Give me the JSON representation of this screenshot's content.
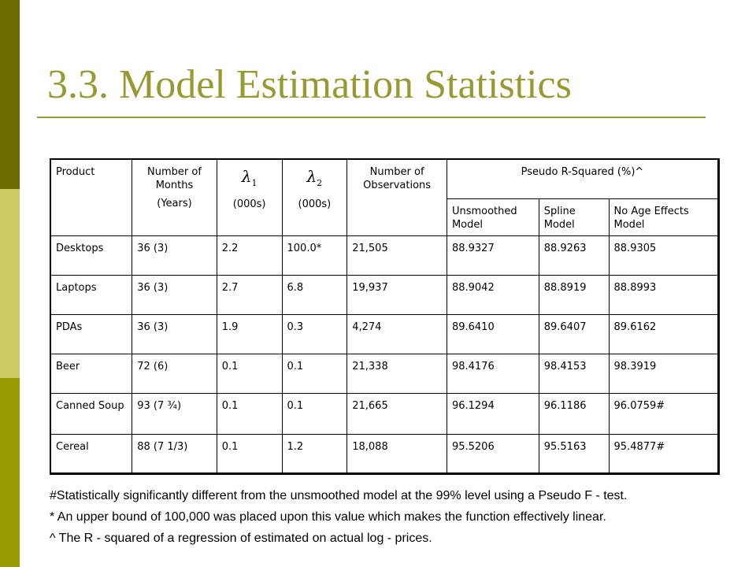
{
  "slide": {
    "title": "3.3. Model Estimation Statistics"
  },
  "table": {
    "header": {
      "product": "Product",
      "months_line1": "Number of Months",
      "months_line2": "(Years)",
      "lambda1_symbol": "λ",
      "lambda1_sub": "1",
      "lambda1_unit": "(000s)",
      "lambda2_symbol": "λ",
      "lambda2_sub": "2",
      "lambda2_unit": "(000s)",
      "observations": "Number of Observations",
      "pseudo_r2": "Pseudo R-Squared (%)^",
      "unsmoothed": "Unsmoothed Model",
      "spline": "Spline Model",
      "no_age": "No Age Effects Model"
    },
    "rows": [
      [
        "Desktops",
        "36 (3)",
        "2.2",
        "100.0*",
        "21,505",
        "88.9327",
        "88.9263",
        "88.9305"
      ],
      [
        "Laptops",
        "36 (3)",
        "2.7",
        "6.8",
        "19,937",
        "88.9042",
        "88.8919",
        "88.8993"
      ],
      [
        "PDAs",
        "36 (3)",
        "1.9",
        "0.3",
        "4,274",
        "89.6410",
        "89.6407",
        "89.6162"
      ],
      [
        "Beer",
        "72 (6)",
        "0.1",
        "0.1",
        "21,338",
        "98.4176",
        "98.4153",
        "98.3919"
      ],
      [
        "Canned Soup",
        "93 (7 ¾)",
        "0.1",
        "0.1",
        "21,665",
        "96.1294",
        "96.1186",
        "96.0759#"
      ],
      [
        "Cereal",
        "88 (7 1/3)",
        "0.1",
        "1.2",
        "18,088",
        "95.5206",
        "95.5163",
        "95.4877#"
      ]
    ]
  },
  "footnotes": {
    "hash": "#Statistically significantly different from the unsmoothed model at the 99% level using a Pseudo F - test.",
    "star": "* An upper bound of 100,000 was placed upon this value which makes the function effectively linear.",
    "caret": "^ The R - squared of a regression of estimated on actual log - prices."
  },
  "colors": {
    "title": "#999933",
    "bar_dark": "#6b6b00",
    "bar_light": "#cccc66",
    "bar_mid": "#999900"
  }
}
